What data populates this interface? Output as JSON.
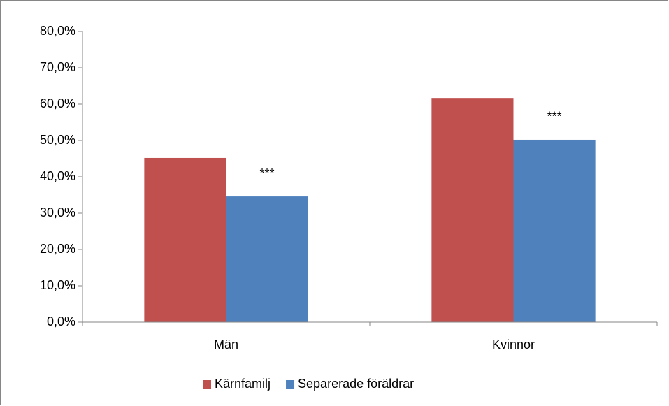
{
  "chart_data": {
    "type": "bar",
    "categories": [
      "Män",
      "Kvinnor"
    ],
    "series": [
      {
        "name": "Kärnfamilj",
        "color": "#c0504d",
        "values": [
          45.2,
          61.7
        ]
      },
      {
        "name": "Separerade föräldrar",
        "color": "#4f81bd",
        "values": [
          34.6,
          50.2
        ]
      }
    ],
    "annotations": [
      {
        "text": "***",
        "category": "Män",
        "series": "Separerade föräldrar"
      },
      {
        "text": "***",
        "category": "Kvinnor",
        "series": "Separerade föräldrar"
      }
    ],
    "ylim": [
      0,
      80
    ],
    "yticks": [
      {
        "value": 0,
        "label": "0,0%"
      },
      {
        "value": 10,
        "label": "10,0%"
      },
      {
        "value": 20,
        "label": "20,0%"
      },
      {
        "value": 30,
        "label": "30,0%"
      },
      {
        "value": 40,
        "label": "40,0%"
      },
      {
        "value": 50,
        "label": "50,0%"
      },
      {
        "value": 60,
        "label": "60,0%"
      },
      {
        "value": 70,
        "label": "70,0%"
      },
      {
        "value": 80,
        "label": "80,0%"
      }
    ],
    "grid": false,
    "legend": "bottom"
  }
}
